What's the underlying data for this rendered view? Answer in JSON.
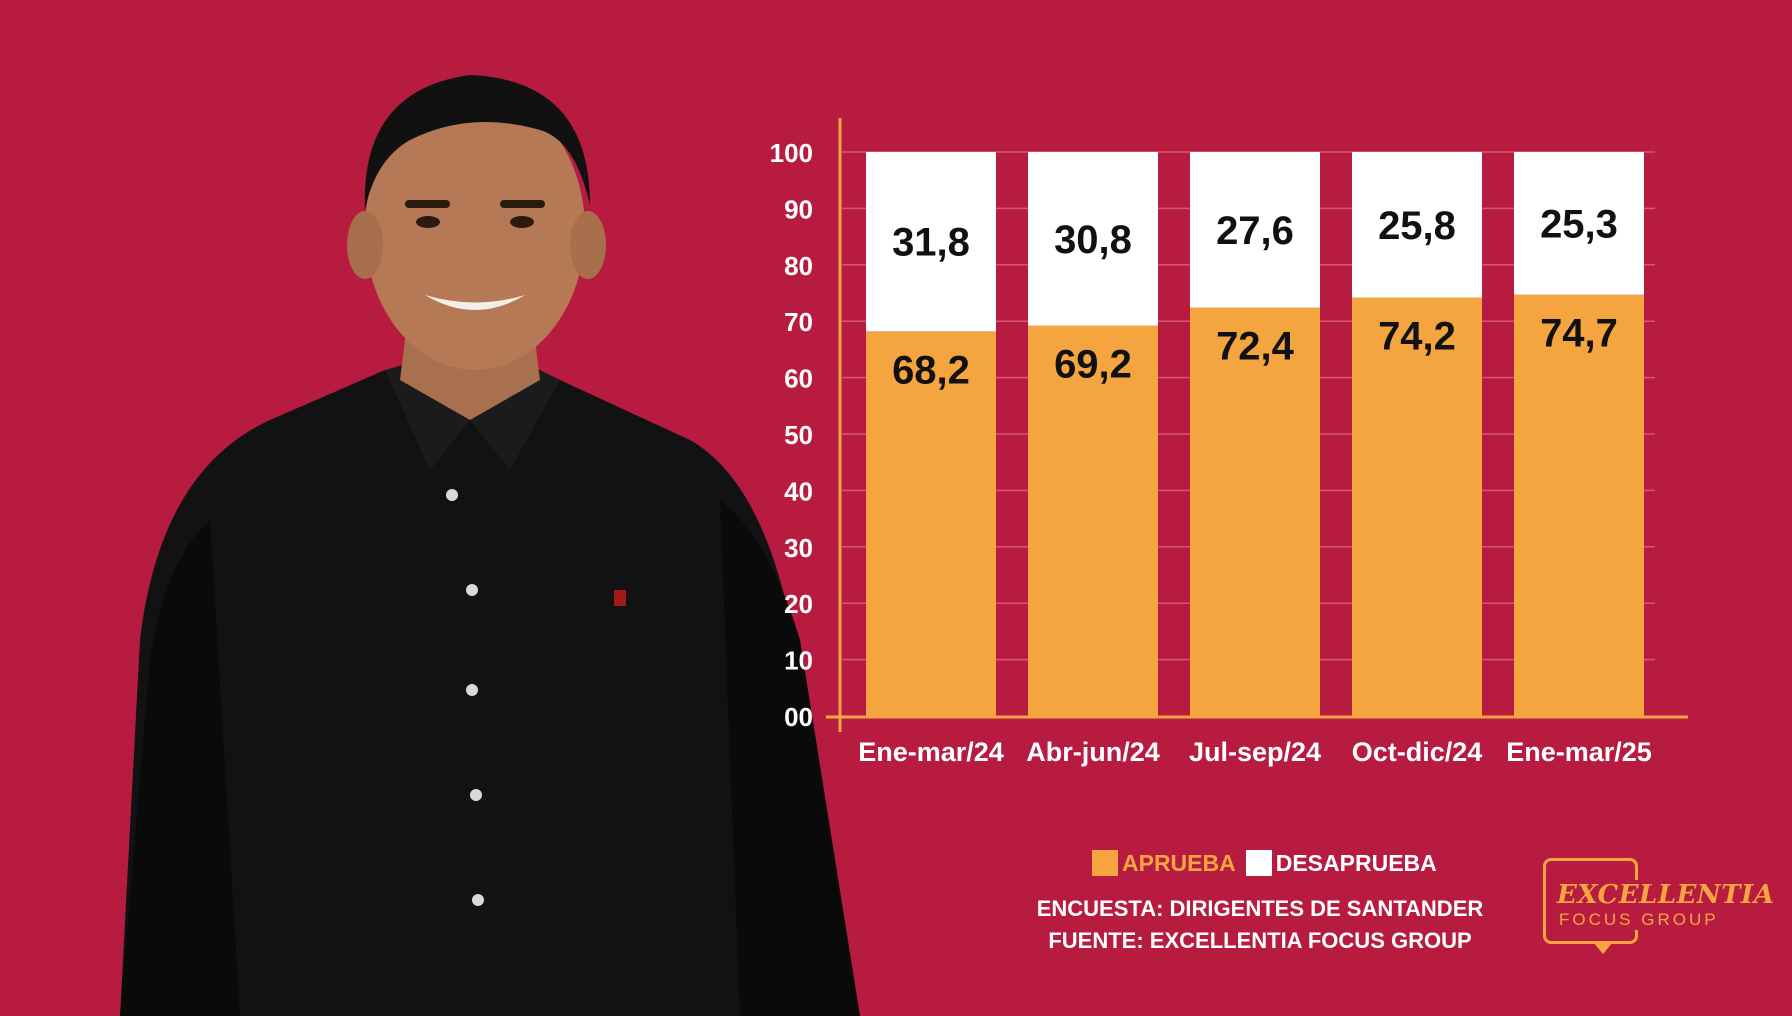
{
  "colors": {
    "background": "#b71c40",
    "aprueba": "#f5a540",
    "desaprueba": "#ffffff",
    "axis": "#f5a540",
    "gridline": "#d4586f"
  },
  "chart_data": {
    "type": "bar",
    "stacked": true,
    "categories": [
      "Ene-mar/24",
      "Abr-jun/24",
      "Jul-sep/24",
      "Oct-dic/24",
      "Ene-mar/25"
    ],
    "series": [
      {
        "name": "APRUEBA",
        "values": [
          68.2,
          69.2,
          72.4,
          74.2,
          74.7
        ],
        "labels": [
          "68,2",
          "69,2",
          "72,4",
          "74,2",
          "74,7"
        ]
      },
      {
        "name": "DESAPRUEBA",
        "values": [
          31.8,
          30.8,
          27.6,
          25.8,
          25.3
        ],
        "labels": [
          "31,8",
          "30,8",
          "27,6",
          "25,8",
          "25,3"
        ]
      }
    ],
    "ylim": [
      0,
      100
    ],
    "yticks": [
      "00",
      "10",
      "20",
      "30",
      "40",
      "50",
      "60",
      "70",
      "80",
      "90",
      "100"
    ],
    "grid": true,
    "legend_position": "bottom"
  },
  "legend": {
    "aprueba": "APRUEBA",
    "desaprueba": "DESAPRUEBA"
  },
  "notes": {
    "encuesta": "ENCUESTA: DIRIGENTES DE SANTANDER",
    "fuente": "FUENTE: EXCELLENTIA FOCUS GROUP"
  },
  "logo": {
    "line1": "EXCELLENTIA",
    "line2": "FOCUS GROUP"
  }
}
